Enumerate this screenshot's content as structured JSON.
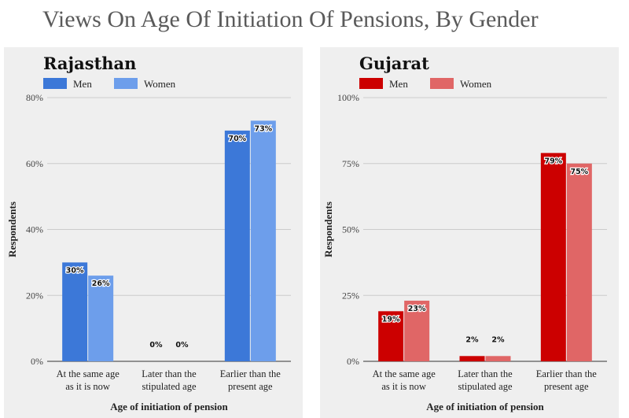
{
  "page_title": "Views On Age Of Initiation Of Pensions, By Gender",
  "chart_data": [
    {
      "type": "bar",
      "title": "Rajasthan",
      "xlabel": "Age of initiation of pension",
      "ylabel": "Respondents",
      "ylim": [
        0,
        80
      ],
      "yticks": [
        "0%",
        "20%",
        "40%",
        "60%",
        "80%"
      ],
      "categories": [
        [
          "At the same age",
          "as it is now"
        ],
        [
          "Later than the",
          "stipulated age"
        ],
        [
          "Earlier than the",
          "present age"
        ]
      ],
      "series": [
        {
          "name": "Men",
          "color": "#3c78d8",
          "values": [
            30,
            0,
            70
          ],
          "labels": [
            "30%",
            "0%",
            "70%"
          ]
        },
        {
          "name": "Women",
          "color": "#6d9eeb",
          "values": [
            26,
            0,
            73
          ],
          "labels": [
            "26%",
            "0%",
            "73%"
          ]
        }
      ],
      "grid": true,
      "legend": "top-left"
    },
    {
      "type": "bar",
      "title": "Gujarat",
      "xlabel": "Age of initiation of pension",
      "ylabel": "Respondents",
      "ylim": [
        0,
        100
      ],
      "yticks": [
        "0%",
        "25%",
        "50%",
        "75%",
        "100%"
      ],
      "categories": [
        [
          "At the same age",
          "as it is now"
        ],
        [
          "Later than the",
          "stipulated age"
        ],
        [
          "Earlier than the",
          "present age"
        ]
      ],
      "series": [
        {
          "name": "Men",
          "color": "#cc0000",
          "values": [
            19,
            2,
            79
          ],
          "labels": [
            "19%",
            "2%",
            "79%"
          ]
        },
        {
          "name": "Women",
          "color": "#e06666",
          "values": [
            23,
            2,
            75
          ],
          "labels": [
            "23%",
            "2%",
            "75%"
          ]
        }
      ],
      "grid": true,
      "legend": "top-left"
    }
  ]
}
